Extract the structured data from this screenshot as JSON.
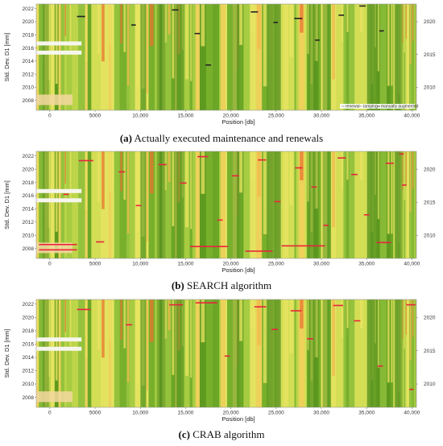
{
  "chart_data": [
    {
      "type": "heatmap",
      "caption_letter": "(a)",
      "caption_text": "Actually executed maintenance and renewals",
      "ylabel": "Std. Dev. D1 [mm]",
      "xlabel": "Position [db]",
      "xlim": [
        -1500,
        40500
      ],
      "ylim": [
        2006.5,
        2022.7
      ],
      "xticks": [
        0,
        5000,
        10000,
        15000,
        20000,
        25000,
        30000,
        35000,
        40000
      ],
      "xtick_labels": [
        "0",
        "5000",
        "10,000",
        "15,000",
        "20,000",
        "25,000",
        "30,000",
        "35,000",
        "40,000"
      ],
      "yticks_left": [
        2008,
        2010,
        2012,
        2014,
        2016,
        2018,
        2020,
        2022
      ],
      "yticks_right": [
        2010,
        2015,
        2020
      ],
      "legend": {
        "placement": "bottom-right",
        "entries": [
          {
            "label": "renewal",
            "color": "#ffffff"
          },
          {
            "label": "tamping",
            "color": "#ffffff"
          },
          {
            "label": "manually augmented",
            "color": "#333333"
          }
        ]
      },
      "marker_color": "#222222",
      "markers": [
        {
          "x": 3000,
          "year": 2020.8,
          "len": 900
        },
        {
          "x": 9000,
          "year": 2019.5,
          "len": 500
        },
        {
          "x": 13500,
          "year": 2021.8,
          "len": 700
        },
        {
          "x": 16000,
          "year": 2018.2,
          "len": 600
        },
        {
          "x": 17200,
          "year": 2013.4,
          "len": 600
        },
        {
          "x": 22200,
          "year": 2021.5,
          "len": 800
        },
        {
          "x": 24700,
          "year": 2019.9,
          "len": 500
        },
        {
          "x": 27000,
          "year": 2020.5,
          "len": 900
        },
        {
          "x": 29300,
          "year": 2017.2,
          "len": 500
        },
        {
          "x": 31900,
          "year": 2021.0,
          "len": 600
        },
        {
          "x": 34200,
          "year": 2022.4,
          "len": 700
        },
        {
          "x": 36400,
          "year": 2018.6,
          "len": 500
        }
      ]
    },
    {
      "type": "heatmap",
      "caption_letter": "(b)",
      "caption_text": "SEARCH algorithm",
      "ylabel": "Std. Dev. D1 [mm]",
      "xlabel": "Position [db]",
      "xlim": [
        -1500,
        40500
      ],
      "ylim": [
        2006.5,
        2022.7
      ],
      "xticks": [
        0,
        5000,
        10000,
        15000,
        20000,
        25000,
        30000,
        35000,
        40000
      ],
      "xtick_labels": [
        "0",
        "5000",
        "10,000",
        "15,000",
        "20,000",
        "25,000",
        "30,000",
        "35,000",
        "40,000"
      ],
      "yticks_left": [
        2008,
        2010,
        2012,
        2014,
        2016,
        2018,
        2020,
        2022
      ],
      "yticks_right": [
        2010,
        2015,
        2020
      ],
      "legend": null,
      "marker_color": "#e8243c",
      "markers": [
        {
          "x": -1200,
          "year": 2008.6,
          "len": 4200
        },
        {
          "x": -1200,
          "year": 2007.8,
          "len": 4200
        },
        {
          "x": 1500,
          "year": 2016.2,
          "len": 600
        },
        {
          "x": 3200,
          "year": 2021.3,
          "len": 1600
        },
        {
          "x": 5100,
          "year": 2009.0,
          "len": 900
        },
        {
          "x": 7600,
          "year": 2019.6,
          "len": 700
        },
        {
          "x": 9500,
          "year": 2014.5,
          "len": 600
        },
        {
          "x": 12000,
          "year": 2020.7,
          "len": 900
        },
        {
          "x": 14400,
          "year": 2017.9,
          "len": 700
        },
        {
          "x": 15500,
          "year": 2008.3,
          "len": 4200
        },
        {
          "x": 16300,
          "year": 2021.9,
          "len": 1200
        },
        {
          "x": 18500,
          "year": 2012.3,
          "len": 600
        },
        {
          "x": 20100,
          "year": 2019.0,
          "len": 800
        },
        {
          "x": 21600,
          "year": 2007.6,
          "len": 3000
        },
        {
          "x": 23000,
          "year": 2021.4,
          "len": 900
        },
        {
          "x": 24800,
          "year": 2015.1,
          "len": 700
        },
        {
          "x": 25600,
          "year": 2008.4,
          "len": 4800
        },
        {
          "x": 27100,
          "year": 2020.2,
          "len": 800
        },
        {
          "x": 28900,
          "year": 2017.3,
          "len": 600
        },
        {
          "x": 30200,
          "year": 2011.5,
          "len": 600
        },
        {
          "x": 31800,
          "year": 2021.7,
          "len": 900
        },
        {
          "x": 33300,
          "year": 2019.2,
          "len": 700
        },
        {
          "x": 34700,
          "year": 2013.1,
          "len": 600
        },
        {
          "x": 36100,
          "year": 2008.9,
          "len": 1600
        },
        {
          "x": 37100,
          "year": 2020.9,
          "len": 900
        },
        {
          "x": 38600,
          "year": 2022.3,
          "len": 500
        },
        {
          "x": 38900,
          "year": 2017.6,
          "len": 500
        }
      ]
    },
    {
      "type": "heatmap",
      "caption_letter": "(c)",
      "caption_text": "CRAB algorithm",
      "ylabel": "Std. Dev. D1 [mm]",
      "xlabel": "Position [db]",
      "xlim": [
        -1500,
        40500
      ],
      "ylim": [
        2006.5,
        2022.7
      ],
      "xticks": [
        0,
        5000,
        10000,
        15000,
        20000,
        25000,
        30000,
        35000,
        40000
      ],
      "xtick_labels": [
        "0",
        "5000",
        "10,000",
        "15,000",
        "20,000",
        "25,000",
        "30,000",
        "35,000",
        "40,000"
      ],
      "yticks_left": [
        2008,
        2010,
        2012,
        2014,
        2016,
        2018,
        2020,
        2022
      ],
      "yticks_right": [
        2010,
        2015,
        2020
      ],
      "legend": null,
      "marker_color": "#e8243c",
      "markers": [
        {
          "x": 3000,
          "year": 2021.2,
          "len": 1500
        },
        {
          "x": 8400,
          "year": 2018.9,
          "len": 700
        },
        {
          "x": 13200,
          "year": 2021.9,
          "len": 1500
        },
        {
          "x": 16100,
          "year": 2022.2,
          "len": 2400
        },
        {
          "x": 19300,
          "year": 2014.2,
          "len": 600
        },
        {
          "x": 22600,
          "year": 2021.6,
          "len": 1300
        },
        {
          "x": 24500,
          "year": 2018.2,
          "len": 700
        },
        {
          "x": 26600,
          "year": 2021.0,
          "len": 1200
        },
        {
          "x": 28400,
          "year": 2016.8,
          "len": 700
        },
        {
          "x": 31300,
          "year": 2021.8,
          "len": 1100
        },
        {
          "x": 33600,
          "year": 2019.5,
          "len": 700
        },
        {
          "x": 36200,
          "year": 2012.7,
          "len": 600
        },
        {
          "x": 39400,
          "year": 2021.9,
          "len": 1000
        },
        {
          "x": 39700,
          "year": 2009.2,
          "len": 500
        }
      ]
    }
  ]
}
